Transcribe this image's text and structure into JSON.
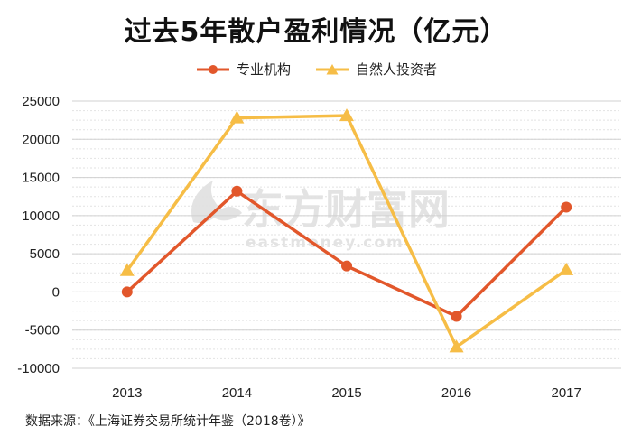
{
  "chart_data": {
    "type": "line",
    "title": "过去5年散户盈利情况（亿元）",
    "categories": [
      "2013",
      "2014",
      "2015",
      "2016",
      "2017"
    ],
    "series": [
      {
        "name": "专业机构",
        "values": [
          0,
          13200,
          3400,
          -3200,
          11100
        ],
        "color": "#e2572b",
        "marker": "circle"
      },
      {
        "name": "自然人投资者",
        "values": [
          2800,
          22800,
          23100,
          -7200,
          2900
        ],
        "color": "#f6bd46",
        "marker": "triangle"
      }
    ],
    "ylim": [
      -10000,
      25000
    ],
    "yticks": [
      25000,
      20000,
      15000,
      10000,
      5000,
      0,
      -5000,
      -10000
    ],
    "grid": true,
    "legend_position": "top-center"
  },
  "watermark": {
    "text_cn": "东方财富网",
    "text_en": "eastmoney.com"
  },
  "source": "数据来源：《上海证券交易所统计年鉴（2018卷）》"
}
